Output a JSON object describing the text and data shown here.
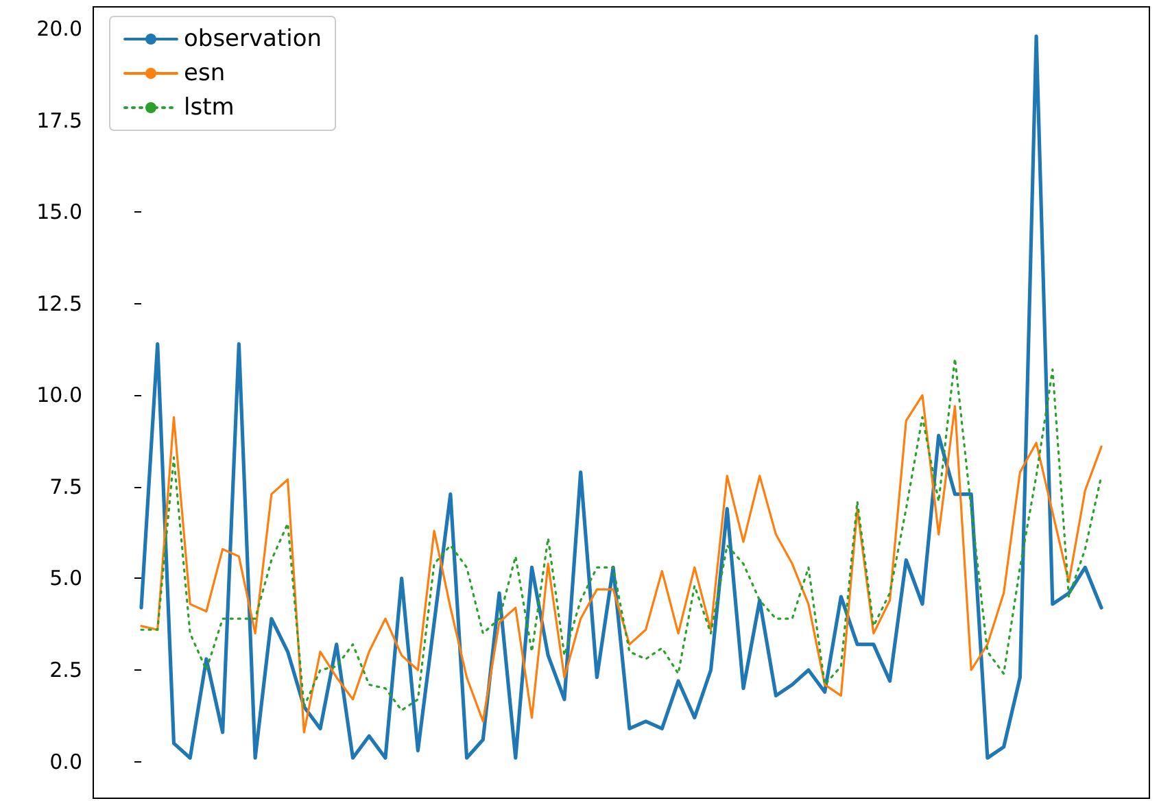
{
  "chart_data": {
    "type": "line",
    "categories": [
      null,
      null,
      null,
      null,
      null,
      null,
      null,
      null,
      null,
      null,
      null,
      null,
      null,
      null,
      null,
      null,
      null,
      null,
      null,
      null,
      null,
      null,
      null,
      null,
      null,
      null,
      null,
      null,
      null,
      null,
      null,
      null,
      null,
      null,
      null,
      null,
      null,
      null,
      null,
      null,
      null,
      null,
      null,
      null,
      null,
      null,
      null,
      null,
      null,
      null,
      null,
      null,
      null,
      null,
      null,
      null,
      null,
      null,
      null,
      null
    ],
    "series": [
      {
        "name": "observation",
        "color": "#1f77b4",
        "line_style": "solid",
        "values": [
          4.2,
          11.4,
          0.5,
          0.1,
          2.8,
          0.8,
          11.4,
          0.1,
          3.9,
          3.0,
          1.5,
          0.9,
          3.2,
          0.1,
          0.7,
          0.1,
          5.0,
          0.3,
          3.8,
          7.3,
          0.1,
          0.6,
          4.6,
          0.1,
          5.3,
          2.9,
          1.7,
          7.9,
          2.3,
          5.3,
          0.9,
          1.1,
          0.9,
          2.2,
          1.2,
          2.5,
          6.9,
          2.0,
          4.4,
          1.8,
          2.1,
          2.5,
          1.9,
          4.5,
          3.2,
          3.2,
          2.2,
          5.5,
          4.3,
          8.9,
          7.3,
          7.3,
          0.1,
          0.4,
          2.3,
          19.8,
          4.3,
          4.6,
          5.3,
          4.2
        ]
      },
      {
        "name": "esn",
        "color": "#ff7f0e",
        "line_style": "solid",
        "values": [
          3.7,
          3.6,
          9.4,
          4.3,
          4.1,
          5.8,
          5.6,
          3.5,
          7.3,
          7.7,
          0.8,
          3.0,
          2.3,
          1.7,
          3.0,
          3.9,
          2.9,
          2.5,
          6.3,
          4.2,
          2.3,
          1.1,
          3.8,
          4.2,
          1.2,
          5.4,
          2.3,
          3.9,
          4.7,
          4.7,
          3.2,
          3.6,
          5.2,
          3.5,
          5.3,
          3.6,
          7.8,
          6.0,
          7.8,
          6.2,
          5.4,
          4.3,
          2.1,
          1.8,
          6.9,
          3.5,
          4.4,
          9.3,
          10.0,
          6.2,
          9.7,
          2.5,
          3.2,
          4.6,
          7.9,
          8.7,
          6.8,
          4.9,
          7.4,
          8.6
        ]
      },
      {
        "name": "lstm",
        "color": "#2ca02c",
        "line_style": "dotted",
        "values": [
          3.6,
          3.6,
          8.3,
          3.5,
          2.5,
          3.9,
          3.9,
          3.9,
          5.5,
          6.5,
          1.5,
          2.5,
          2.6,
          3.2,
          2.1,
          2.0,
          1.4,
          1.7,
          5.4,
          5.9,
          5.3,
          3.5,
          3.9,
          5.6,
          3.0,
          6.1,
          2.9,
          4.4,
          5.3,
          5.3,
          3.0,
          2.8,
          3.1,
          2.4,
          4.8,
          3.5,
          5.9,
          5.4,
          4.4,
          3.9,
          3.9,
          5.3,
          2.1,
          2.6,
          7.1,
          3.7,
          4.6,
          6.9,
          9.4,
          7.1,
          11.0,
          6.9,
          3.0,
          2.4,
          5.3,
          7.8,
          10.7,
          4.5,
          5.8,
          7.8
        ]
      }
    ],
    "ylim": [
      -1.0,
      20.6
    ],
    "yticks": [
      {
        "value": 0,
        "label": "0.0"
      },
      {
        "value": 2.5,
        "label": "2.5"
      },
      {
        "value": 5,
        "label": "5.0"
      },
      {
        "value": 7.5,
        "label": "7.5"
      },
      {
        "value": 10,
        "label": "10.0"
      },
      {
        "value": 12.5,
        "label": "12.5"
      },
      {
        "value": 15,
        "label": "15.0"
      },
      {
        "value": 17.5,
        "label": "17.5"
      },
      {
        "value": 20,
        "label": "20.0"
      }
    ],
    "tick_labels": "y",
    "grid": false,
    "legend": "top left",
    "marker": "none"
  }
}
